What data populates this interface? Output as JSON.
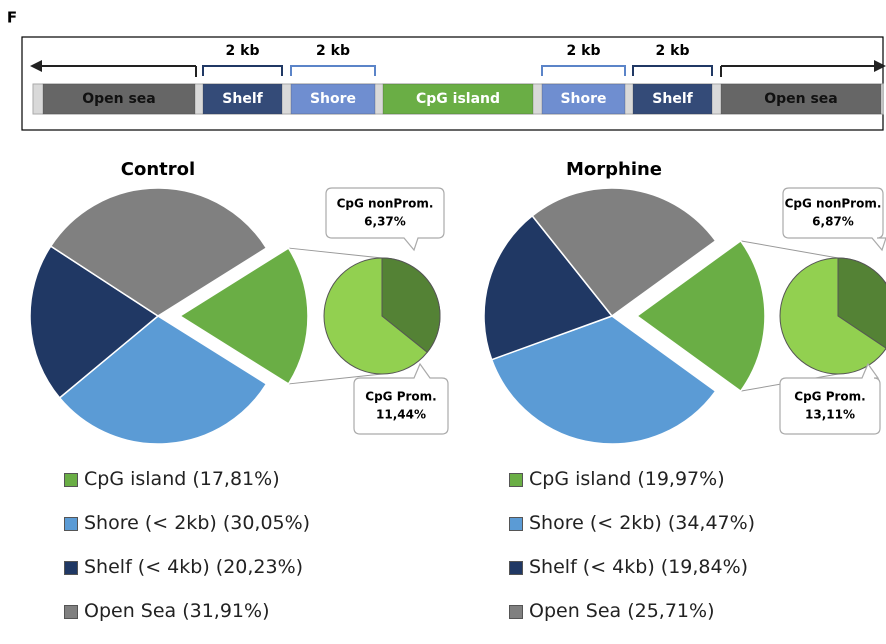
{
  "panel_letter": "F",
  "diagram": {
    "segments": [
      {
        "label": "Open sea",
        "color": "#666666"
      },
      {
        "label": "Shelf",
        "color": "#344b78"
      },
      {
        "label": "Shore",
        "color": "#6f8ed0"
      },
      {
        "label": "CpG island",
        "color": "#6aae45"
      },
      {
        "label": "Shore",
        "color": "#6f8ed0"
      },
      {
        "label": "Shelf",
        "color": "#344b78"
      },
      {
        "label": "Open sea",
        "color": "#666666"
      }
    ],
    "distance_labels": [
      "2 kb",
      "2 kb",
      "2 kb",
      "2 kb"
    ]
  },
  "colors": {
    "cpg_island": "#6aae45",
    "shore": "#5b9bd5",
    "shelf": "#203864",
    "open_sea": "#808080",
    "cpg_prom": "#92d050",
    "cpg_nonprom": "#548235"
  },
  "chart_data": [
    {
      "type": "pie",
      "title": "Control",
      "categories": [
        "CpG island",
        "Shore (< 2kb)",
        "Shelf (< 4kb)",
        "Open Sea"
      ],
      "values": [
        17.81,
        30.05,
        20.23,
        31.91
      ],
      "legend": [
        "CpG island (17,81%)",
        "Shore (< 2kb) (30,05%)",
        "Shelf (< 4kb) (20,23%)",
        "Open Sea (31,91%)"
      ],
      "breakdown": {
        "of": "CpG island",
        "categories": [
          "CpG Prom.",
          "CpG nonProm."
        ],
        "values": [
          11.44,
          6.37
        ],
        "labels": [
          "CpG Prom.",
          "11,44%",
          "CpG nonProm.",
          "6,37%"
        ]
      }
    },
    {
      "type": "pie",
      "title": "Morphine",
      "categories": [
        "CpG island",
        "Shore (< 2kb)",
        "Shelf (< 4kb)",
        "Open Sea"
      ],
      "values": [
        19.97,
        34.47,
        19.84,
        25.71
      ],
      "legend": [
        "CpG island (19,97%)",
        "Shore (< 2kb) (34,47%)",
        "Shelf (< 4kb) (19,84%)",
        "Open Sea (25,71%)"
      ],
      "breakdown": {
        "of": "CpG island",
        "categories": [
          "CpG Prom.",
          "CpG nonProm."
        ],
        "values": [
          13.11,
          6.87
        ],
        "labels": [
          "CpG Prom.",
          "13,11%",
          "CpG nonProm.",
          "6,87%"
        ]
      }
    }
  ]
}
